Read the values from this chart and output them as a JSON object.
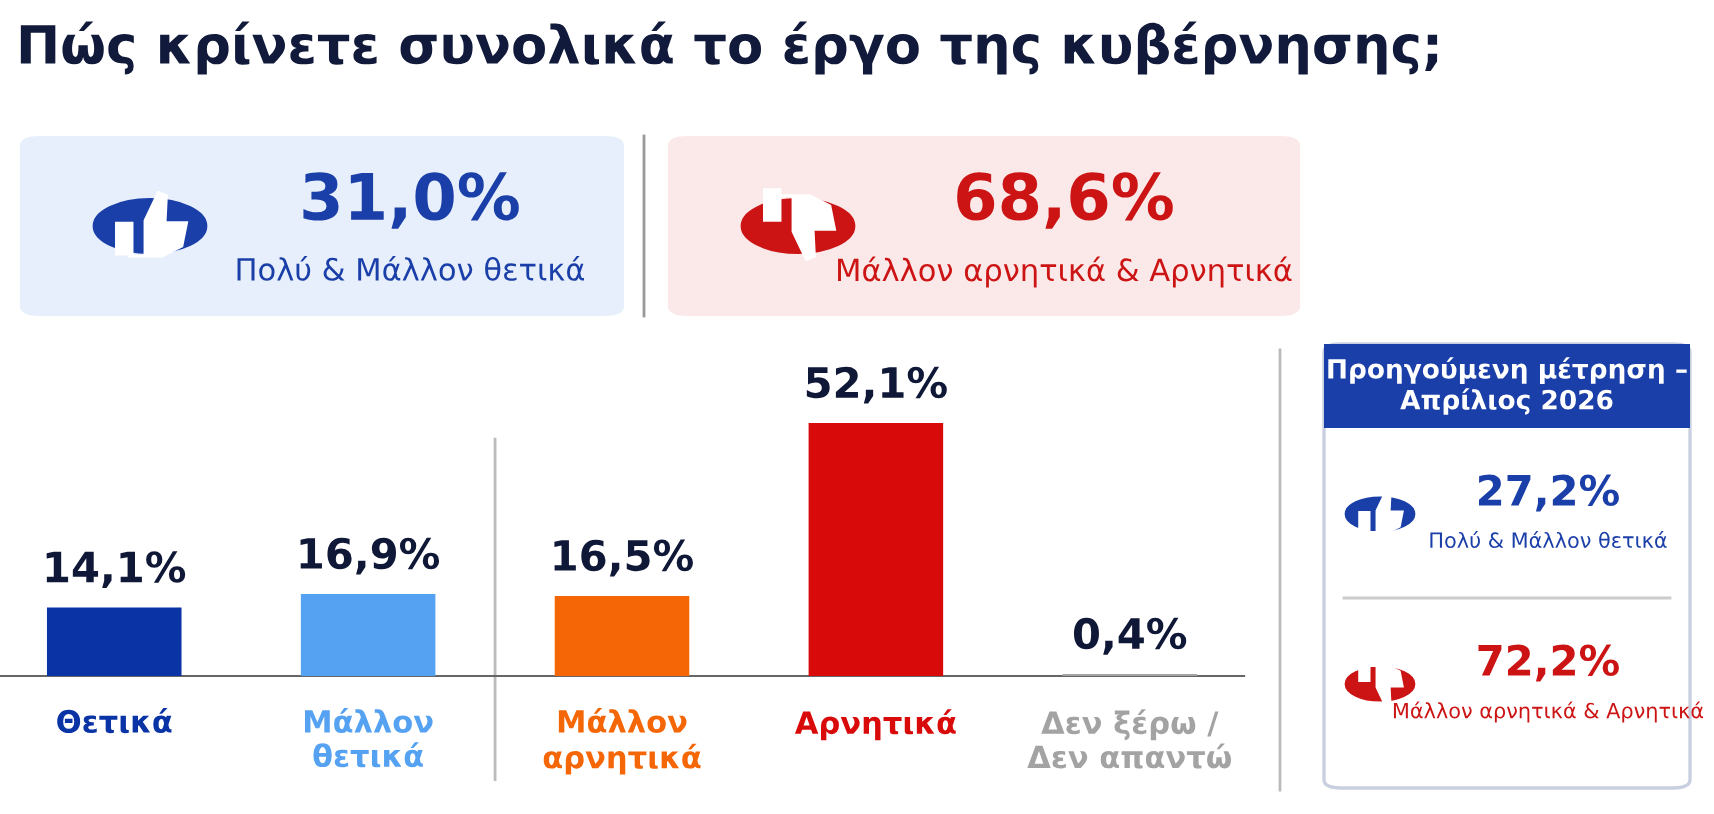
{
  "chart_data": [
    {
      "type": "bar",
      "title": "Πώς κρίνετε συνολικά το έργο της κυβέρνησης;",
      "categories": [
        "Θετικά",
        "Μάλλον\nθετικά",
        "Μάλλον\nαρνητικά",
        "Αρνητικά",
        "Δεν ξέρω /\nΔεν απαντώ"
      ],
      "values": [
        14.1,
        16.9,
        16.5,
        52.1,
        0.4
      ],
      "colors": [
        "#0a33a6",
        "#55a2f2",
        "#f56606",
        "#d90a0a",
        "#a3a3a3"
      ],
      "value_labels": [
        "14,1%",
        "16,9%",
        "16,5%",
        "52,1%",
        "0,4%"
      ],
      "grid": false,
      "legend": false
    },
    {
      "type": "other",
      "annotations": [
        "31,0%",
        "Πολύ & Μάλλον θετικά",
        "68,6%",
        "Μάλλον αρνητικά & Αρνητικά"
      ],
      "colors": [
        "#1b3fa8",
        "#cc1414"
      ]
    },
    {
      "type": "other",
      "title": "Προηγούμενη μέτρηση –\nΑπρίλιος 2026",
      "annotations": [
        "27,2%",
        "Πολύ & Μάλλον θετικά",
        "72,2%",
        "Μάλλον αρνητικά & Αρνητικά"
      ],
      "colors": [
        "#1b3fa8",
        "#cc1414"
      ]
    }
  ]
}
